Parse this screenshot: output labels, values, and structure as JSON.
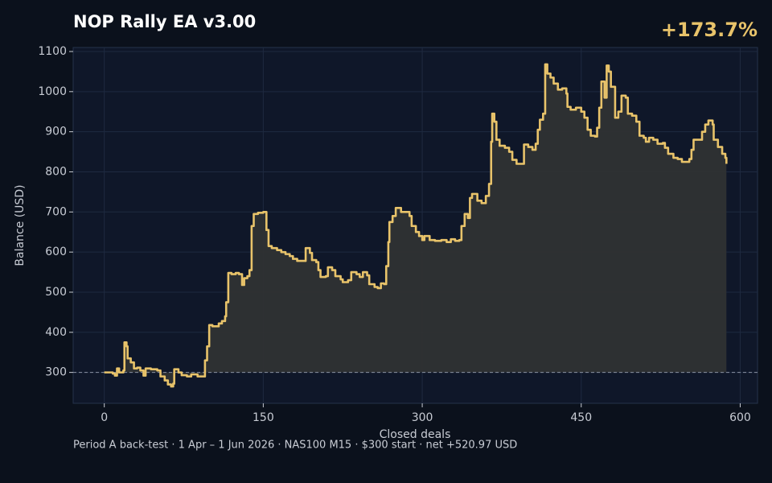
{
  "chart_data": {
    "type": "line",
    "title": "NOP Rally EA v3.00",
    "annotation": "+173.7%",
    "xlabel": "Closed deals",
    "ylabel": "Balance (USD)",
    "footer": "Period A back-test  ·  1 Apr – 1 Jun 2026  ·  NAS100 M15  ·  $300 start  ·  net +520.97 USD",
    "drawstyle": "steps-post",
    "fill": true,
    "baseline": 300,
    "grid": true,
    "xlim": [
      -29.35,
      616.35
    ],
    "ylim": [
      223,
      1110
    ],
    "xticks": [
      0,
      150,
      300,
      450,
      600
    ],
    "yticks": [
      300,
      400,
      500,
      600,
      700,
      800,
      900,
      1000,
      1100
    ],
    "series": [
      {
        "name": "Balance",
        "color": "#e8c36a",
        "x": [
          0,
          8,
          10,
          12,
          14,
          18,
          19,
          21,
          22,
          25,
          28,
          31,
          34,
          37,
          39,
          44,
          50,
          53,
          57,
          60,
          63,
          65,
          66,
          70,
          73,
          78,
          82,
          88,
          93,
          95,
          97,
          99,
          102,
          106,
          108,
          111,
          114,
          115,
          117,
          120,
          124,
          127,
          130,
          132,
          135,
          137,
          139,
          141,
          145,
          150,
          153,
          155,
          158,
          163,
          167,
          171,
          175,
          178,
          182,
          187,
          190,
          194,
          196,
          200,
          202,
          204,
          209,
          211,
          215,
          218,
          223,
          225,
          230,
          233,
          238,
          241,
          244,
          248,
          250,
          255,
          258,
          261,
          264,
          266,
          268,
          269,
          272,
          275,
          280,
          285,
          288,
          290,
          294,
          297,
          300,
          302,
          307,
          312,
          318,
          323,
          327,
          331,
          335,
          337,
          340,
          343,
          345,
          347,
          352,
          356,
          360,
          363,
          365,
          366,
          368,
          370,
          373,
          378,
          382,
          385,
          389,
          396,
          400,
          404,
          407,
          409,
          411,
          414,
          416,
          418,
          421,
          424,
          428,
          432,
          436,
          437,
          440,
          445,
          450,
          453,
          456,
          459,
          463,
          465,
          467,
          469,
          472,
          474,
          476,
          478,
          482,
          485,
          488,
          492,
          494,
          498,
          502,
          505,
          509,
          511,
          514,
          518,
          522,
          527,
          529,
          532,
          537,
          541,
          545,
          552,
          554,
          556,
          561,
          564,
          567,
          570,
          574,
          575,
          579,
          583,
          586,
          587
        ],
        "values": [
          300,
          297,
          292,
          310,
          300,
          305,
          375,
          365,
          335,
          325,
          310,
          312,
          305,
          292,
          310,
          308,
          305,
          290,
          280,
          270,
          265,
          272,
          308,
          300,
          293,
          290,
          295,
          290,
          290,
          330,
          365,
          418,
          415,
          415,
          422,
          428,
          440,
          475,
          548,
          545,
          548,
          545,
          518,
          535,
          540,
          555,
          665,
          695,
          698,
          700,
          655,
          615,
          610,
          605,
          600,
          595,
          590,
          583,
          578,
          578,
          610,
          598,
          580,
          575,
          555,
          538,
          540,
          562,
          555,
          540,
          532,
          525,
          530,
          550,
          545,
          538,
          550,
          542,
          520,
          513,
          510,
          522,
          520,
          565,
          625,
          675,
          690,
          710,
          700,
          700,
          690,
          665,
          650,
          640,
          630,
          640,
          630,
          628,
          630,
          625,
          632,
          628,
          630,
          665,
          695,
          685,
          735,
          745,
          728,
          722,
          740,
          770,
          875,
          945,
          925,
          880,
          865,
          860,
          850,
          830,
          820,
          868,
          862,
          855,
          870,
          905,
          930,
          945,
          1068,
          1045,
          1035,
          1020,
          1005,
          1008,
          995,
          962,
          955,
          960,
          950,
          935,
          905,
          890,
          888,
          910,
          960,
          1025,
          985,
          1065,
          1050,
          1012,
          935,
          950,
          990,
          985,
          945,
          940,
          925,
          890,
          885,
          875,
          885,
          880,
          870,
          872,
          860,
          845,
          835,
          832,
          825,
          832,
          855,
          880,
          880,
          900,
          918,
          928,
          918,
          880,
          862,
          845,
          835,
          820
        ]
      }
    ]
  }
}
